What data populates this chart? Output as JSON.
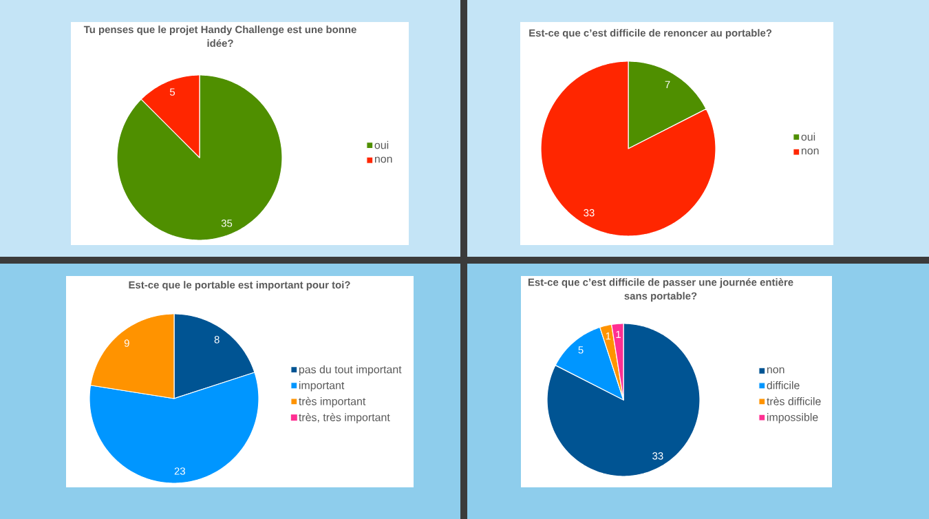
{
  "chart_data": [
    {
      "type": "pie",
      "title": "Tu penses que le projet Handy Challenge est une bonne idée?",
      "categories": [
        "oui",
        "non"
      ],
      "values": [
        35,
        5
      ],
      "colors": [
        "#4f8f00",
        "#ff2600"
      ],
      "data_labels": true,
      "legend": "right"
    },
    {
      "type": "pie",
      "title": "Est-ce que c’est difficile de renoncer au portable?",
      "categories": [
        "oui",
        "non"
      ],
      "values": [
        7,
        33
      ],
      "colors": [
        "#4f8f00",
        "#ff2600"
      ],
      "data_labels": true,
      "legend": "right"
    },
    {
      "type": "pie",
      "title": "Est-ce que le portable est important pour toi?",
      "categories": [
        "pas du tout important",
        "important",
        "très important",
        "très, très important"
      ],
      "values": [
        8,
        23,
        9,
        0
      ],
      "colors": [
        "#005493",
        "#0096ff",
        "#ff9300",
        "#ff2f92"
      ],
      "value_labels": [
        "8",
        "23",
        "9",
        null
      ],
      "legend": "right"
    },
    {
      "type": "pie",
      "title": "Est-ce que c’est difficile de passer une journée entière sans portable?",
      "categories": [
        "non",
        "difficile",
        "très difficile",
        "impossible"
      ],
      "values": [
        33,
        5,
        1,
        1
      ],
      "colors": [
        "#005493",
        "#0096ff",
        "#ff9300",
        "#ff2f92"
      ],
      "data_labels": true,
      "legend": "right"
    }
  ]
}
